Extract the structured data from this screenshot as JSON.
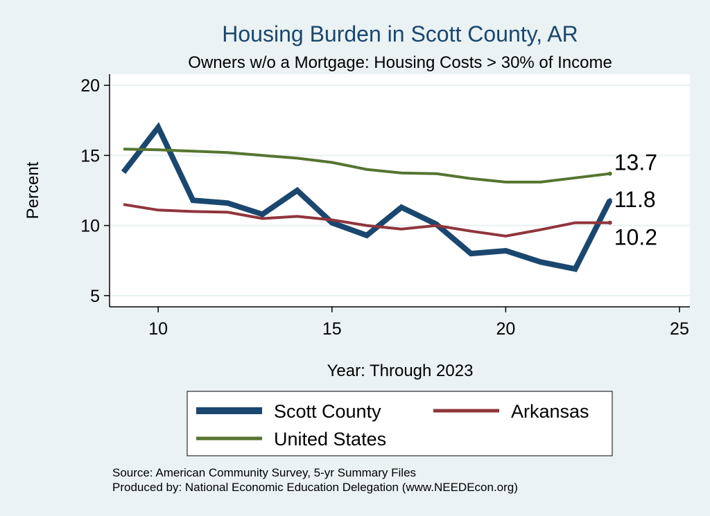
{
  "chart_data": {
    "type": "line",
    "title": "Housing Burden in Scott County, AR",
    "subtitle": "Owners w/o a Mortgage: Housing Costs > 30% of Income",
    "xlabel": "Year: Through 2023",
    "ylabel": "Percent",
    "xlim": [
      8.6,
      25.3
    ],
    "ylim": [
      4.2,
      20.8
    ],
    "xticks": [
      10,
      15,
      20,
      25
    ],
    "yticks": [
      5,
      10,
      15,
      20
    ],
    "x": [
      9,
      10,
      11,
      12,
      13,
      14,
      15,
      16,
      17,
      18,
      19,
      20,
      21,
      22,
      23
    ],
    "series": [
      {
        "name": "Scott County",
        "color": "#1a476f",
        "values": [
          13.8,
          17.0,
          11.8,
          11.6,
          10.8,
          12.5,
          10.2,
          9.3,
          11.3,
          10.1,
          8.0,
          8.2,
          7.4,
          6.9,
          11.8
        ],
        "end_label": "11.8"
      },
      {
        "name": "Arkansas",
        "color": "#90353b",
        "values": [
          11.5,
          11.1,
          11.0,
          10.95,
          10.5,
          10.65,
          10.4,
          10.0,
          9.75,
          10.0,
          9.6,
          9.25,
          9.7,
          10.2,
          10.2
        ],
        "end_label": "10.2"
      },
      {
        "name": "United States",
        "color": "#55752f",
        "values": [
          15.45,
          15.4,
          15.3,
          15.2,
          15.0,
          14.8,
          14.5,
          14.0,
          13.75,
          13.7,
          13.35,
          13.1,
          13.1,
          13.4,
          13.7
        ],
        "end_label": "13.7"
      }
    ],
    "legend": {
      "position": "bottom",
      "entries": [
        "Scott County",
        "Arkansas",
        "United States"
      ]
    },
    "notes": [
      "Source: American Community Survey, 5-yr Summary Files",
      "Produced by: National Economic Education Delegation (www.NEEDEcon.org)"
    ]
  }
}
